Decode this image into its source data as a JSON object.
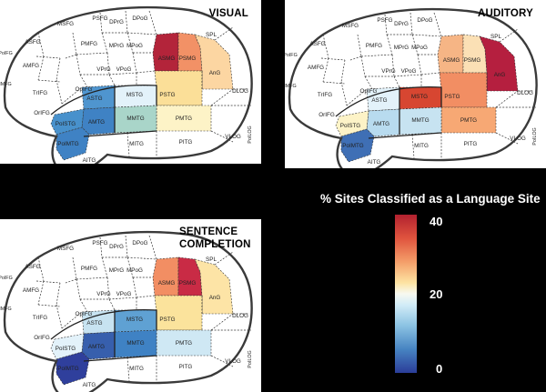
{
  "panels": [
    {
      "id": "visual",
      "title": "VISUAL",
      "regions": {
        "ASMG": "#b3243a",
        "PSMG": "#f29166",
        "AnG": "#fcd6a2",
        "PSTG": "#fbdf98",
        "PMTG": "#fdf3c7",
        "MSTG": "#e3f2fa",
        "MMTG": "#a9d5c9",
        "ASTG": "#4f95cf",
        "AMTG": "#3f82c4",
        "PoISTG": "#4891cc",
        "PoIMTG": "#3f82c4"
      },
      "labels": [
        "PSFG",
        "DPrG",
        "DPoG",
        "MSFG",
        "ASFG",
        "PMFG",
        "MPrG",
        "MPoG",
        "ASMG",
        "PSMG",
        "SPL",
        "AMFG",
        "PoIFG",
        "IMFG",
        "VPrG",
        "VPoG",
        "AnG",
        "TrIFG",
        "OpIFG",
        "MSTG",
        "PSTG",
        "DLOG",
        "OrIFG",
        "ASTG",
        "MMTG",
        "PMTG",
        "PoISTG",
        "AMTG",
        "PoIMTG",
        "MITG",
        "PITG",
        "VLOG",
        "PoILOG",
        "AITG",
        "PoIITG"
      ]
    },
    {
      "id": "auditory",
      "title": "AUDITORY",
      "regions": {
        "ASMG": "#f6b585",
        "PSMG": "#fbe0b5",
        "AnG": "#b51f3f",
        "MSTG": "#d74631",
        "PSTG": "#f28e63",
        "PMTG": "#f7a874",
        "MMTG": "#c7e3f1",
        "ASTG": "#e3f2fa",
        "AMTG": "#b8dbef",
        "PoISTG": "#fdf3c7",
        "PoIMTG": "#3f6fb5"
      },
      "labels": [
        "PSFG",
        "DPrG",
        "DPoG",
        "MSFG",
        "ASFG",
        "PMFG",
        "MPrG",
        "MPoG",
        "ASMG",
        "PSMG",
        "SPL",
        "AMFG",
        "PoIFG",
        "IMFG",
        "VPrG",
        "VPoG",
        "AnG",
        "TrIFG",
        "OpIFG",
        "MSTG",
        "PSTG",
        "DLOG",
        "OrIFG",
        "ASTG",
        "MMTG",
        "PMTG",
        "PoISTG",
        "AMTG",
        "PoIMTG",
        "MITG",
        "PITG",
        "VLOG",
        "PoILOG",
        "AITG"
      ]
    },
    {
      "id": "sentence",
      "title": "SENTENCE COMPLETION",
      "regions": {
        "ASMG": "#f28e63",
        "PSMG": "#c92b45",
        "AnG": "#fde4a6",
        "PSTG": "#fbe39c",
        "PMTG": "#cfe8f4",
        "MSTG": "#5fa1d3",
        "MMTG": "#3f82c4",
        "ASTG": "#c7e3f1",
        "AMTG": "#375fad",
        "PoISTG": "#e3f2fa",
        "PoIMTG": "#2f3f9c"
      },
      "labels": [
        "PSFG",
        "DPrG",
        "DPoG",
        "MSFG",
        "ASFG",
        "PMFG",
        "MPrG",
        "MPoG",
        "ASMG",
        "PSMG",
        "SPL",
        "AMFG",
        "PoIFG",
        "IMFG",
        "VPrG",
        "VPoG",
        "AnG",
        "TrIFG",
        "OpIFG",
        "MSTG",
        "PSTG",
        "DLOG",
        "OrIFG",
        "ASTG",
        "MMTG",
        "PMTG",
        "PoISTG",
        "AMTG",
        "PoIMTG",
        "MITG",
        "PITG",
        "VLOG",
        "PoILOG",
        "AITG",
        "PoIITG"
      ]
    }
  ],
  "legend": {
    "title": "% Sites Classified as a Language Site",
    "ticks": [
      "40",
      "20",
      "0"
    ],
    "value_range": [
      0,
      40
    ]
  }
}
